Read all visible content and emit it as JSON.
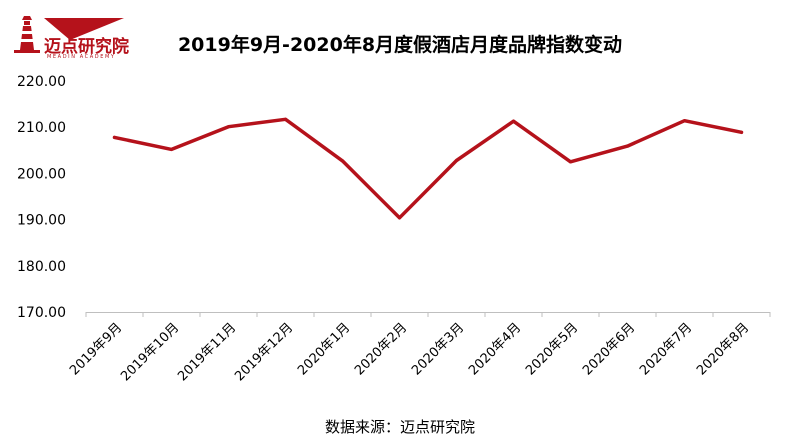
{
  "logo": {
    "name": "迈点研究院",
    "subtitle": "MEADIN ACADEMY",
    "color": "#b5121b"
  },
  "source": "数据来源：迈点研究院",
  "chart_data": {
    "type": "line",
    "title": "2019年9月-2020年8月度假酒店月度品牌指数变动",
    "xlabel": "",
    "ylabel": "",
    "categories": [
      "2019年9月",
      "2019年10月",
      "2019年11月",
      "2019年12月",
      "2020年1月",
      "2020年2月",
      "2020年3月",
      "2020年4月",
      "2020年5月",
      "2020年6月",
      "2020年7月",
      "2020年8月"
    ],
    "series": [
      {
        "values": [
          207.8,
          205.2,
          210.1,
          211.7,
          202.7,
          190.4,
          202.8,
          211.3,
          202.5,
          205.9,
          211.4,
          208.9
        ],
        "color": "#b5121b"
      }
    ],
    "ylim": [
      170,
      220
    ],
    "yticks": [
      170,
      180,
      190,
      200,
      210,
      220
    ],
    "ytick_labels": [
      "170.00",
      "180.00",
      "190.00",
      "200.00",
      "210.00",
      "220.00"
    ],
    "grid": false,
    "legend": "none"
  }
}
